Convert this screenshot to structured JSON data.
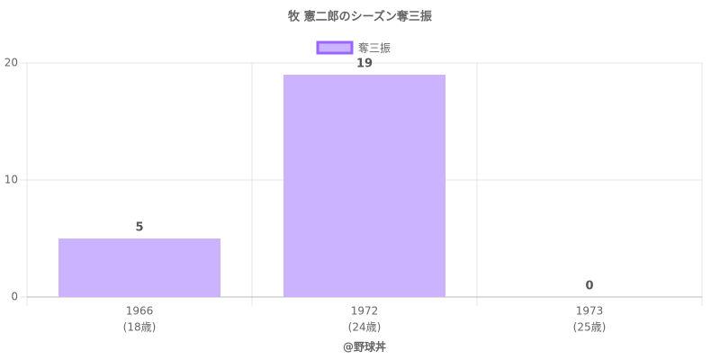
{
  "chart_data": {
    "type": "bar",
    "title": "牧 憲二郎のシーズン奪三振",
    "categories": [
      "1966",
      "1972",
      "1973"
    ],
    "category_sublabels": [
      "(18歳)",
      "(24歳)",
      "(25歳)"
    ],
    "series": [
      {
        "name": "奪三振",
        "color": "#cbb3ff",
        "border_color": "#9966ff",
        "values": [
          5,
          19,
          0
        ]
      }
    ],
    "ylim": [
      0,
      20
    ],
    "yticks": [
      0,
      10,
      20
    ],
    "grid": true,
    "legend": "top",
    "footer": "@野球丼"
  }
}
